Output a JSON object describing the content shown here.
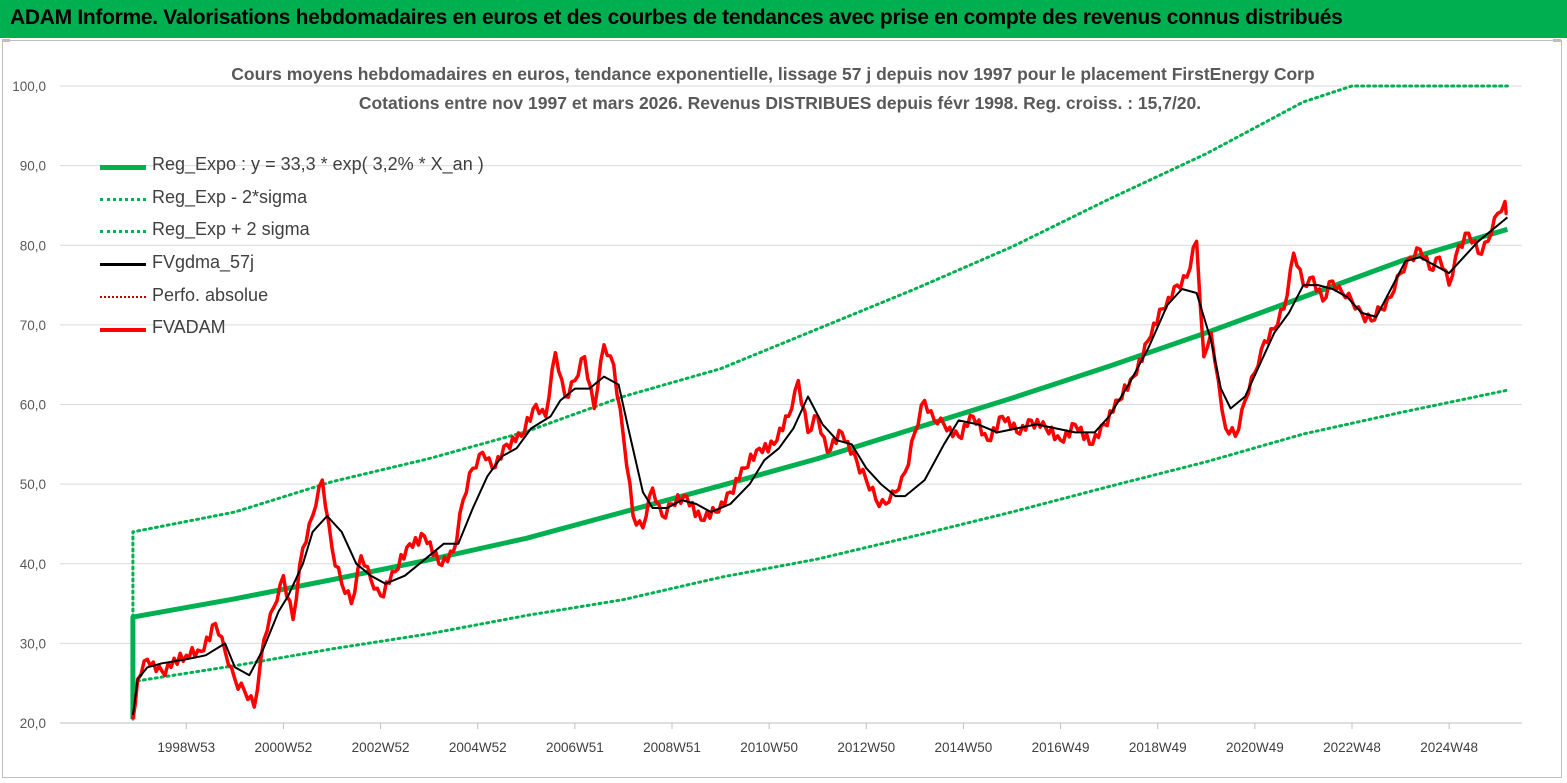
{
  "header": {
    "title": "ADAM Informe. Valorisations hebdomadaires en euros et des courbes de tendances avec prise en compte des revenus connus distribués"
  },
  "chart_data": {
    "type": "line",
    "title": "Cours moyens hebdomadaires en euros, tendance exponentielle, lissage 57 j depuis nov 1997 pour le placement FirstEnergy Corp",
    "subtitle": "Cotations entre nov 1997 et mars 2026. Revenus DISTRIBUES depuis févr 1998. Reg. croiss. : 15,7/20.",
    "xlabel": "",
    "ylabel": "",
    "ylim": [
      20,
      100
    ],
    "xlim": [
      1996.4,
      2026.5
    ],
    "y_ticks": [
      "100,0",
      "90,0",
      "80,0",
      "70,0",
      "60,0",
      "50,0",
      "40,0",
      "30,0",
      "20,0"
    ],
    "y_tick_values": [
      100,
      90,
      80,
      70,
      60,
      50,
      40,
      30,
      20
    ],
    "x_ticks": [
      "1998W53",
      "2000W52",
      "2002W52",
      "2004W52",
      "2006W51",
      "2008W51",
      "2010W50",
      "2012W50",
      "2014W50",
      "2016W49",
      "2018W49",
      "2020W49",
      "2022W48",
      "2024W48"
    ],
    "x_tick_values": [
      1999,
      2001,
      2003,
      2005,
      2007,
      2009,
      2011,
      2013,
      2015,
      2017,
      2019,
      2021,
      2023,
      2025
    ],
    "grid": "horizontal",
    "legend_position": "left",
    "colors": {
      "reg_expo": "#00b050",
      "reg_minus": "#00b050",
      "reg_plus": "#00b050",
      "fvgdma": "#000000",
      "perfo": "#c00000",
      "fvadam": "#ff0000"
    },
    "series": [
      {
        "key": "reg_expo",
        "name": "Reg_Expo : y = 33,3 * exp( 3,2% *  X_an )",
        "style": "solid-thick",
        "x": [
          1997.9,
          1997.9,
          2000,
          2002,
          2004,
          2006,
          2008,
          2010,
          2012,
          2014,
          2016,
          2018,
          2020,
          2022,
          2024,
          2026.2
        ],
        "y": [
          20.5,
          33.3,
          35.6,
          38.0,
          40.5,
          43.2,
          46.5,
          49.8,
          53.2,
          57.0,
          60.8,
          64.8,
          69.0,
          73.5,
          78.0,
          82.0
        ]
      },
      {
        "key": "reg_minus",
        "name": "Reg_Exp - 2*sigma",
        "style": "dotted",
        "x": [
          1997.9,
          1997.9,
          2000,
          2002,
          2004,
          2006,
          2008,
          2010,
          2012,
          2014,
          2016,
          2018,
          2020,
          2022,
          2024,
          2026.2
        ],
        "y": [
          20.5,
          25.2,
          27.2,
          29.3,
          31.2,
          33.5,
          35.5,
          38.3,
          40.6,
          43.5,
          46.5,
          49.7,
          52.8,
          56.3,
          59.0,
          61.8
        ]
      },
      {
        "key": "reg_plus",
        "name": "Reg_Exp + 2 sigma",
        "style": "dotted",
        "x": [
          1997.9,
          1997.9,
          2000,
          2002,
          2004,
          2006,
          2008,
          2010,
          2012,
          2014,
          2016,
          2018,
          2020,
          2022,
          2023,
          2024,
          2026.2
        ],
        "y": [
          20.5,
          44.0,
          46.5,
          50.3,
          53.2,
          56.6,
          61.0,
          64.5,
          69.5,
          74.5,
          79.8,
          85.8,
          91.5,
          98.0,
          100,
          100,
          100
        ]
      },
      {
        "key": "fvgdma",
        "name": "FVgdma_57j",
        "style": "solid",
        "x": [
          1997.9,
          1998.0,
          1998.2,
          1998.5,
          1999.0,
          1999.4,
          1999.8,
          2000.0,
          2000.3,
          2000.6,
          2000.9,
          2001.1,
          2001.4,
          2001.6,
          2001.9,
          2002.2,
          2002.5,
          2002.8,
          2003.1,
          2003.5,
          2003.9,
          2004.3,
          2004.6,
          2004.9,
          2005.2,
          2005.5,
          2005.8,
          2006.1,
          2006.5,
          2006.7,
          2007.0,
          2007.3,
          2007.6,
          2007.9,
          2008.1,
          2008.4,
          2008.6,
          2008.9,
          2009.2,
          2009.5,
          2009.8,
          2010.2,
          2010.6,
          2010.9,
          2011.2,
          2011.5,
          2011.8,
          2012.1,
          2012.4,
          2012.7,
          2013.0,
          2013.3,
          2013.6,
          2013.8,
          2014.2,
          2014.6,
          2014.9,
          2015.3,
          2015.7,
          2016.1,
          2016.5,
          2016.9,
          2017.3,
          2017.7,
          2018.0,
          2018.4,
          2018.8,
          2019.2,
          2019.5,
          2019.8,
          2020.1,
          2020.3,
          2020.5,
          2020.8,
          2021.1,
          2021.4,
          2021.7,
          2022.0,
          2022.3,
          2022.6,
          2022.9,
          2023.2,
          2023.5,
          2023.8,
          2024.1,
          2024.4,
          2024.7,
          2025.0,
          2025.3,
          2025.6,
          2025.9,
          2026.2
        ],
        "y": [
          21.0,
          25.5,
          27.0,
          27.5,
          28.0,
          28.5,
          30.0,
          27.0,
          26.0,
          29.5,
          34.0,
          36.0,
          40.0,
          44.0,
          46.0,
          44.0,
          40.0,
          38.5,
          37.5,
          38.5,
          40.5,
          42.5,
          42.5,
          47.0,
          51.0,
          53.5,
          54.5,
          57.0,
          58.5,
          60.5,
          62.0,
          62.0,
          63.5,
          62.5,
          57.0,
          49.0,
          47.0,
          47.0,
          48.0,
          47.5,
          46.5,
          47.5,
          50.0,
          53.0,
          54.5,
          57.0,
          61.0,
          57.5,
          55.5,
          55.0,
          52.0,
          50.0,
          48.5,
          48.5,
          50.5,
          55.0,
          58.0,
          57.5,
          56.5,
          57.0,
          57.5,
          57.0,
          56.5,
          56.5,
          58.5,
          62.5,
          67.0,
          72.5,
          74.5,
          74.0,
          68.0,
          62.0,
          59.5,
          61.0,
          65.0,
          69.0,
          71.5,
          75.0,
          75.0,
          74.5,
          73.5,
          71.5,
          71.0,
          74.5,
          78.0,
          78.5,
          77.5,
          76.5,
          78.5,
          80.5,
          82.0,
          83.5
        ]
      },
      {
        "key": "perfo",
        "name": "Perfo. absolue",
        "style": "dotted-thin",
        "x": [],
        "y": []
      },
      {
        "key": "fvadam",
        "name": "FVADAM",
        "style": "solid-thick-noisy",
        "x": [
          1997.9,
          1998.0,
          1998.2,
          1998.5,
          1999.0,
          1999.3,
          1999.6,
          1999.8,
          2000.0,
          2000.2,
          2000.4,
          2000.6,
          2000.8,
          2001.0,
          2001.2,
          2001.4,
          2001.6,
          2001.8,
          2002.0,
          2002.2,
          2002.4,
          2002.6,
          2002.8,
          2003.0,
          2003.3,
          2003.6,
          2003.9,
          2004.2,
          2004.5,
          2004.7,
          2004.9,
          2005.1,
          2005.3,
          2005.6,
          2005.9,
          2006.2,
          2006.4,
          2006.6,
          2006.8,
          2007.0,
          2007.2,
          2007.4,
          2007.6,
          2007.8,
          2008.0,
          2008.2,
          2008.4,
          2008.6,
          2008.8,
          2009.0,
          2009.3,
          2009.6,
          2009.9,
          2010.2,
          2010.5,
          2010.8,
          2011.1,
          2011.4,
          2011.6,
          2011.8,
          2012.0,
          2012.2,
          2012.5,
          2012.8,
          2013.0,
          2013.2,
          2013.4,
          2013.6,
          2013.8,
          2014.0,
          2014.2,
          2014.4,
          2014.6,
          2014.9,
          2015.2,
          2015.5,
          2015.8,
          2016.1,
          2016.4,
          2016.7,
          2017.0,
          2017.3,
          2017.6,
          2017.9,
          2018.2,
          2018.5,
          2018.8,
          2019.1,
          2019.4,
          2019.6,
          2019.8,
          2019.95,
          2020.1,
          2020.25,
          2020.4,
          2020.6,
          2020.8,
          2021.0,
          2021.2,
          2021.4,
          2021.6,
          2021.8,
          2022.0,
          2022.2,
          2022.4,
          2022.6,
          2022.8,
          2023.0,
          2023.2,
          2023.4,
          2023.6,
          2023.8,
          2024.0,
          2024.2,
          2024.4,
          2024.6,
          2024.8,
          2025.0,
          2025.2,
          2025.4,
          2025.6,
          2025.8,
          2026.0,
          2026.15,
          2026.2
        ],
        "y": [
          20.5,
          25.5,
          28.0,
          26.5,
          28.5,
          29.0,
          32.5,
          29.0,
          25.5,
          24.0,
          22.0,
          30.5,
          34.5,
          38.5,
          33.0,
          42.0,
          46.0,
          50.5,
          42.0,
          37.5,
          35.0,
          41.0,
          38.0,
          36.0,
          39.0,
          42.5,
          43.5,
          40.0,
          41.5,
          48.0,
          52.0,
          54.0,
          52.0,
          55.0,
          56.0,
          60.0,
          58.5,
          66.5,
          61.0,
          63.0,
          66.0,
          59.5,
          67.5,
          65.0,
          56.0,
          46.0,
          44.5,
          49.5,
          46.0,
          47.5,
          48.5,
          45.5,
          46.5,
          49.0,
          52.0,
          54.5,
          55.0,
          58.5,
          63.0,
          56.5,
          58.5,
          54.0,
          56.5,
          53.0,
          50.5,
          48.0,
          47.5,
          49.0,
          51.5,
          56.5,
          60.5,
          58.0,
          57.5,
          56.0,
          58.5,
          55.5,
          58.5,
          56.5,
          58.0,
          57.0,
          55.5,
          57.5,
          55.0,
          57.5,
          60.5,
          63.5,
          68.0,
          72.0,
          75.0,
          76.0,
          80.5,
          66.0,
          69.0,
          63.0,
          57.0,
          56.0,
          60.5,
          64.0,
          68.0,
          69.5,
          72.0,
          79.0,
          75.0,
          76.0,
          73.0,
          75.5,
          74.0,
          73.0,
          71.5,
          70.5,
          72.0,
          73.5,
          76.5,
          78.5,
          79.5,
          77.0,
          78.5,
          75.0,
          80.0,
          81.5,
          79.0,
          80.5,
          84.0,
          85.5,
          84.0
        ]
      }
    ]
  }
}
